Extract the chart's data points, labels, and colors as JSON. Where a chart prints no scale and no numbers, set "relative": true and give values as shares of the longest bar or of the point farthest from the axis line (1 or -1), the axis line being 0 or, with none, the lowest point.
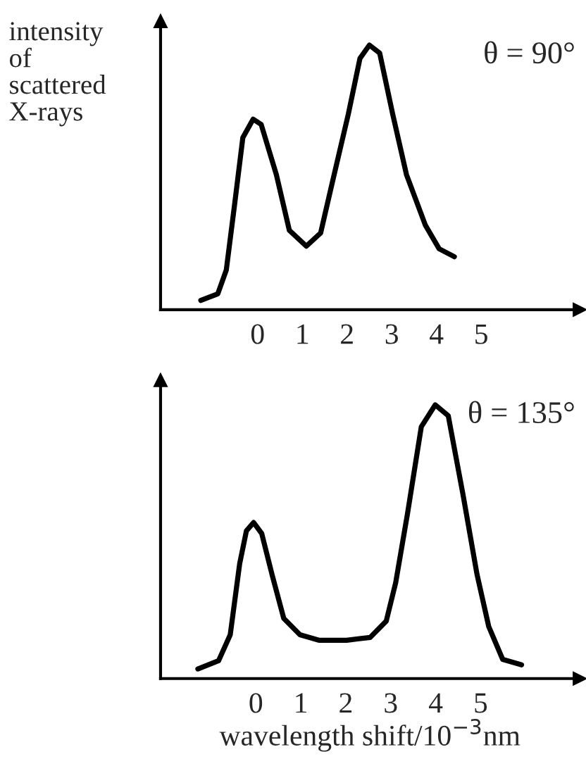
{
  "chart_data": [
    {
      "type": "line",
      "relative": true,
      "ylabel": "intensity\nof\nscattered\nX-rays",
      "annotations": [
        "θ = 90°"
      ],
      "xlim": [
        -2.17,
        7.2
      ],
      "xticks": [
        0,
        1,
        2,
        3,
        4,
        5
      ],
      "grid": false,
      "legend": false,
      "marker": "none",
      "line_style": "solid",
      "series": [
        {
          "color": "#000000",
          "x": [
            -1.27,
            -0.89,
            -0.7,
            -0.52,
            -0.33,
            -0.1,
            0.08,
            0.42,
            0.71,
            1.09,
            1.41,
            1.67,
            2.03,
            2.29,
            2.5,
            2.73,
            3.02,
            3.33,
            3.75,
            4.06,
            4.4
          ],
          "values": [
            0.035,
            0.06,
            0.15,
            0.39,
            0.65,
            0.72,
            0.7,
            0.51,
            0.3,
            0.24,
            0.29,
            0.48,
            0.74,
            0.95,
            1.0,
            0.97,
            0.74,
            0.51,
            0.32,
            0.23,
            0.2
          ]
        }
      ]
    },
    {
      "type": "line",
      "relative": true,
      "xlabel": "wavelength shift/10$^{−3}$nm",
      "annotations": [
        "θ = 135°"
      ],
      "xlim": [
        -2.12,
        7.2
      ],
      "xticks": [
        0,
        1,
        2,
        3,
        4,
        5
      ],
      "grid": false,
      "legend": false,
      "marker": "none",
      "line_style": "solid",
      "series": [
        {
          "color": "#000000",
          "x": [
            -1.29,
            -0.83,
            -0.57,
            -0.36,
            -0.21,
            -0.05,
            0.13,
            0.36,
            0.62,
            0.98,
            1.4,
            2.02,
            2.54,
            2.9,
            3.11,
            3.37,
            3.68,
            3.99,
            4.28,
            4.61,
            4.92,
            5.18,
            5.49,
            5.91
          ],
          "values": [
            0.035,
            0.065,
            0.16,
            0.42,
            0.54,
            0.57,
            0.53,
            0.38,
            0.22,
            0.16,
            0.14,
            0.14,
            0.15,
            0.21,
            0.35,
            0.6,
            0.92,
            1.0,
            0.96,
            0.67,
            0.38,
            0.19,
            0.07,
            0.05
          ]
        }
      ]
    }
  ]
}
